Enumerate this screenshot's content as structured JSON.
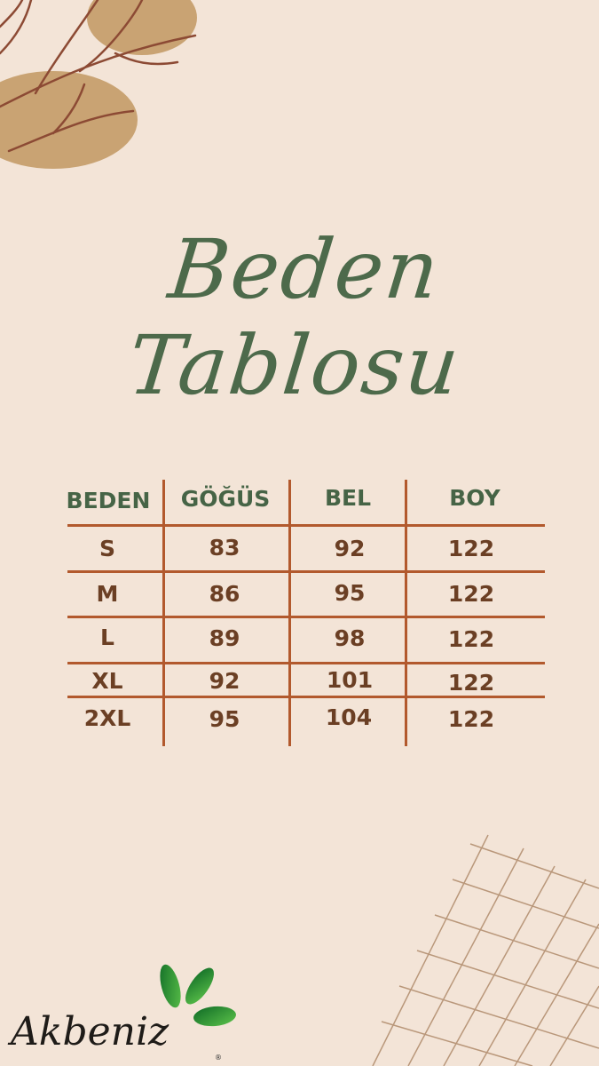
{
  "title": {
    "line1": "Beden",
    "line2": "Tablosu"
  },
  "table": {
    "headers": [
      "BEDEN",
      "GÖĞÜS",
      "BEL",
      "BOY"
    ],
    "rows": [
      [
        "S",
        "83",
        "92",
        "122"
      ],
      [
        "M",
        "86",
        "95",
        "122"
      ],
      [
        "L",
        "89",
        "98",
        "122"
      ],
      [
        "XL",
        "92",
        "101",
        "122"
      ],
      [
        "2XL",
        "95",
        "104",
        "122"
      ]
    ]
  },
  "logo": {
    "text": "Akbeniz",
    "mark": "®"
  },
  "colors": {
    "background": "#f3e4d7",
    "heading": "#466446",
    "values": "#6b3f24",
    "grid": "#b2592d",
    "leaf": "#2e9a3a"
  }
}
